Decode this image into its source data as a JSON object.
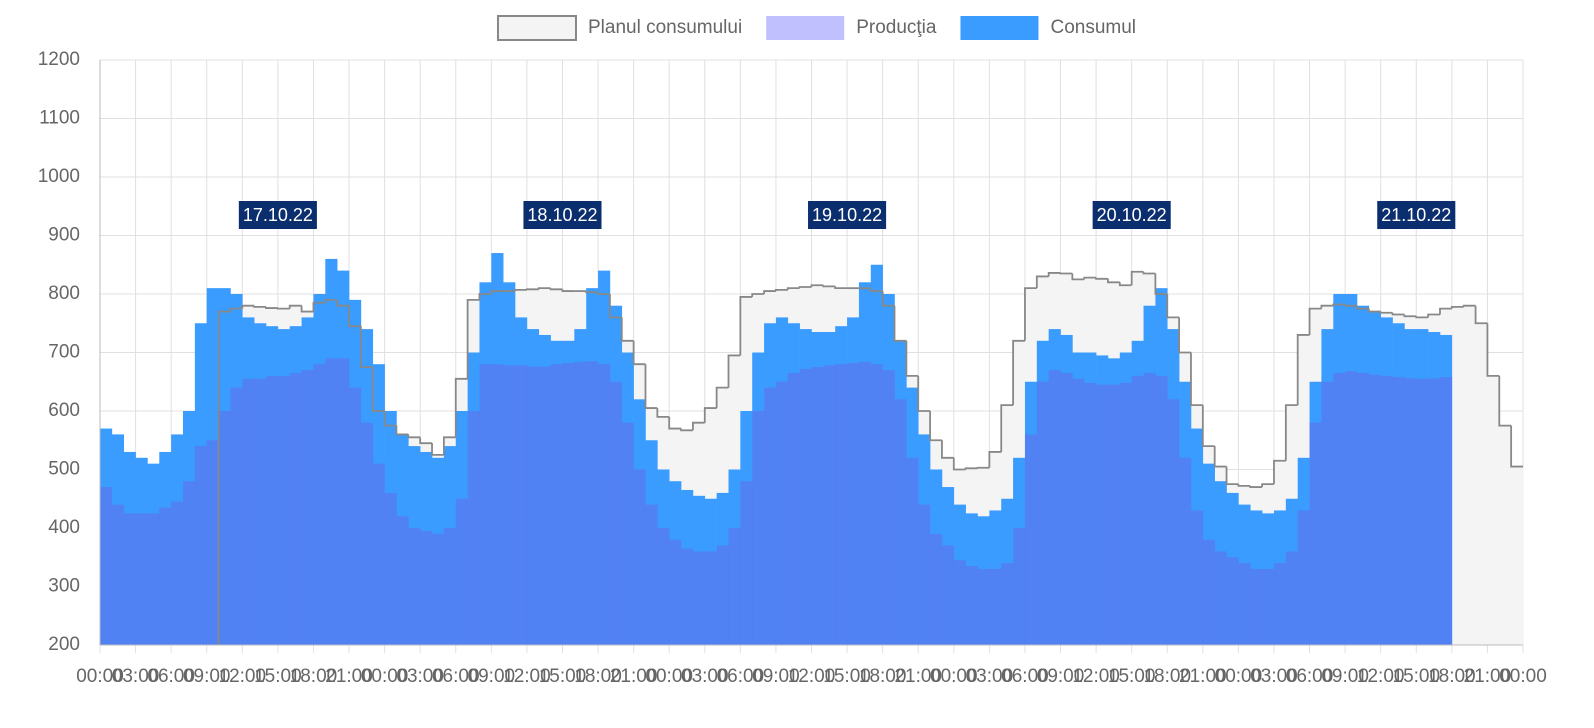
{
  "chart_data": {
    "type": "step-area",
    "x": [
      0,
      1,
      2,
      3,
      4,
      5,
      6,
      7,
      8,
      9,
      10,
      11,
      12,
      13,
      14,
      15,
      16,
      17,
      18,
      19,
      20,
      21,
      22,
      23,
      24,
      25,
      26,
      27,
      28,
      29,
      30,
      31,
      32,
      33,
      34,
      35,
      36,
      37,
      38,
      39,
      40,
      41,
      42,
      43,
      44,
      45,
      46,
      47,
      48,
      49,
      50,
      51,
      52,
      53,
      54,
      55,
      56,
      57,
      58,
      59,
      60,
      61,
      62,
      63,
      64,
      65,
      66,
      67,
      68,
      69,
      70,
      71,
      72,
      73,
      74,
      75,
      76,
      77,
      78,
      79,
      80,
      81,
      82,
      83,
      84,
      85,
      86,
      87,
      88,
      89,
      90,
      91,
      92,
      93,
      94,
      95,
      96,
      97,
      98,
      99,
      100,
      101,
      102,
      103,
      104,
      105,
      106,
      107,
      108,
      109,
      110,
      111,
      112,
      113,
      114,
      115,
      116,
      117,
      118,
      119
    ],
    "series": [
      {
        "name": "Planul consumului",
        "color": "#888888",
        "fill": "#f4f4f4",
        "values": [
          null,
          null,
          null,
          null,
          null,
          null,
          null,
          null,
          null,
          null,
          770,
          775,
          780,
          778,
          776,
          775,
          780,
          770,
          785,
          790,
          780,
          745,
          675,
          600,
          575,
          560,
          555,
          545,
          525,
          555,
          655,
          790,
          800,
          805,
          805,
          807,
          808,
          810,
          808,
          805,
          805,
          803,
          800,
          760,
          720,
          680,
          605,
          590,
          570,
          567,
          580,
          605,
          640,
          695,
          795,
          800,
          805,
          807,
          810,
          812,
          815,
          813,
          810,
          810,
          810,
          805,
          780,
          720,
          660,
          600,
          550,
          520,
          500,
          502,
          503,
          530,
          610,
          720,
          810,
          830,
          836,
          835,
          825,
          828,
          826,
          820,
          815,
          838,
          835,
          800,
          760,
          700,
          610,
          540,
          505,
          475,
          472,
          470,
          475,
          515,
          610,
          730,
          775,
          780,
          782,
          780,
          775,
          770,
          768,
          765,
          762,
          760,
          765,
          775,
          778,
          780,
          750,
          660,
          575,
          505
        ]
      },
      {
        "name": "Producţia",
        "color": "#c0c0ff",
        "values": [
          470,
          440,
          425,
          425,
          425,
          435,
          445,
          480,
          540,
          550,
          600,
          640,
          655,
          655,
          660,
          660,
          665,
          670,
          680,
          690,
          690,
          640,
          580,
          510,
          460,
          420,
          400,
          395,
          390,
          400,
          450,
          600,
          680,
          680,
          678,
          678,
          676,
          676,
          680,
          682,
          684,
          685,
          680,
          650,
          580,
          500,
          440,
          400,
          380,
          365,
          360,
          360,
          370,
          400,
          480,
          600,
          640,
          650,
          665,
          672,
          675,
          678,
          680,
          682,
          684,
          680,
          670,
          620,
          520,
          440,
          390,
          370,
          345,
          335,
          330,
          330,
          340,
          400,
          560,
          650,
          670,
          665,
          655,
          648,
          645,
          645,
          648,
          660,
          665,
          660,
          620,
          520,
          430,
          380,
          360,
          350,
          340,
          330,
          330,
          340,
          360,
          430,
          580,
          650,
          665,
          668,
          665,
          662,
          660,
          658,
          656,
          655,
          656,
          658,
          null,
          null,
          null,
          null,
          null,
          null
        ]
      },
      {
        "name": "Consumul",
        "color": "#3a9cff",
        "values": [
          570,
          560,
          530,
          520,
          510,
          530,
          560,
          600,
          750,
          810,
          810,
          800,
          760,
          750,
          745,
          740,
          745,
          760,
          800,
          860,
          840,
          790,
          740,
          680,
          600,
          560,
          540,
          530,
          520,
          540,
          600,
          700,
          820,
          870,
          820,
          760,
          740,
          730,
          720,
          720,
          740,
          810,
          840,
          780,
          700,
          620,
          550,
          500,
          480,
          465,
          455,
          450,
          460,
          500,
          600,
          700,
          750,
          760,
          750,
          740,
          735,
          735,
          745,
          760,
          820,
          850,
          800,
          720,
          640,
          560,
          500,
          470,
          440,
          425,
          420,
          430,
          450,
          520,
          650,
          720,
          740,
          730,
          700,
          700,
          695,
          690,
          700,
          720,
          780,
          810,
          740,
          650,
          570,
          510,
          480,
          460,
          440,
          430,
          425,
          430,
          450,
          520,
          650,
          740,
          800,
          800,
          780,
          770,
          760,
          750,
          740,
          740,
          735,
          730,
          null,
          null,
          null,
          null,
          null,
          null
        ]
      }
    ],
    "annotations": [
      {
        "text": "17.10.22",
        "x": 15
      },
      {
        "text": "18.10.22",
        "x": 39
      },
      {
        "text": "19.10.22",
        "x": 63
      },
      {
        "text": "20.10.22",
        "x": 87
      },
      {
        "text": "21.10.22",
        "x": 111
      }
    ],
    "xlim": [
      0,
      120
    ],
    "xticks": [
      {
        "value": 0,
        "label": "00:00"
      },
      {
        "value": 3,
        "label": "03:00"
      },
      {
        "value": 6,
        "label": "06:00"
      },
      {
        "value": 9,
        "label": "09:00"
      },
      {
        "value": 12,
        "label": "12:00"
      },
      {
        "value": 15,
        "label": "15:00"
      },
      {
        "value": 18,
        "label": "18:00"
      },
      {
        "value": 21,
        "label": "21:00"
      },
      {
        "value": 24,
        "label": "00:00"
      },
      {
        "value": 27,
        "label": "03:00"
      },
      {
        "value": 30,
        "label": "06:00"
      },
      {
        "value": 33,
        "label": "09:00"
      },
      {
        "value": 36,
        "label": "12:00"
      },
      {
        "value": 39,
        "label": "15:00"
      },
      {
        "value": 42,
        "label": "18:00"
      },
      {
        "value": 45,
        "label": "21:00"
      },
      {
        "value": 48,
        "label": "00:00"
      },
      {
        "value": 51,
        "label": "03:00"
      },
      {
        "value": 54,
        "label": "06:00"
      },
      {
        "value": 57,
        "label": "09:00"
      },
      {
        "value": 60,
        "label": "12:00"
      },
      {
        "value": 63,
        "label": "15:00"
      },
      {
        "value": 66,
        "label": "18:00"
      },
      {
        "value": 69,
        "label": "21:00"
      },
      {
        "value": 72,
        "label": "00:00"
      },
      {
        "value": 75,
        "label": "03:00"
      },
      {
        "value": 78,
        "label": "06:00"
      },
      {
        "value": 81,
        "label": "09:00"
      },
      {
        "value": 84,
        "label": "12:00"
      },
      {
        "value": 87,
        "label": "15:00"
      },
      {
        "value": 90,
        "label": "18:00"
      },
      {
        "value": 93,
        "label": "21:00"
      },
      {
        "value": 96,
        "label": "00:00"
      },
      {
        "value": 99,
        "label": "03:00"
      },
      {
        "value": 102,
        "label": "06:00"
      },
      {
        "value": 105,
        "label": "09:00"
      },
      {
        "value": 108,
        "label": "12:00"
      },
      {
        "value": 111,
        "label": "15:00"
      },
      {
        "value": 114,
        "label": "18:00"
      },
      {
        "value": 117,
        "label": "21:00"
      },
      {
        "value": 120,
        "label": "00:00"
      }
    ],
    "ylim": [
      200,
      1200
    ],
    "yticks": [
      200,
      300,
      400,
      500,
      600,
      700,
      800,
      900,
      1000,
      1100,
      1200
    ],
    "grid": true
  }
}
